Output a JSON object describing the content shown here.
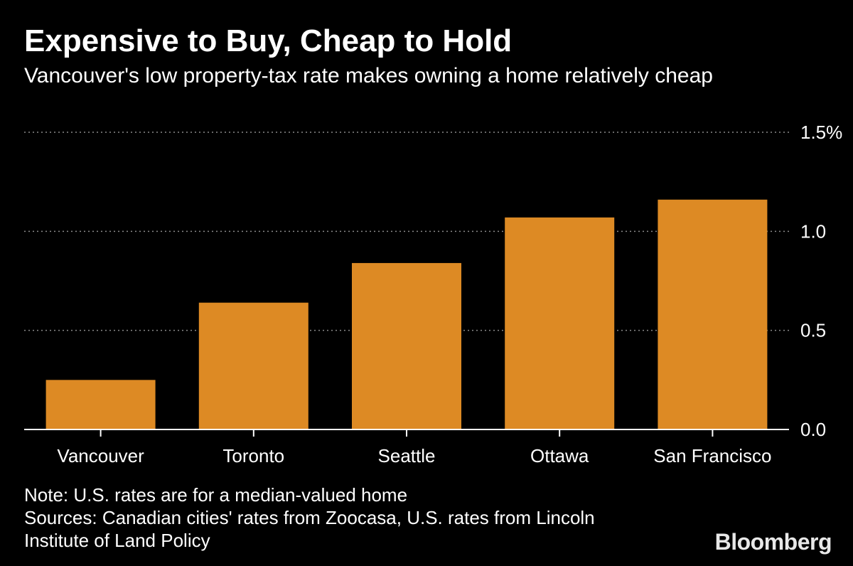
{
  "header": {
    "title": "Expensive to Buy, Cheap to Hold",
    "subtitle": "Vancouver's low property-tax rate makes owning a home relatively cheap"
  },
  "chart_data": {
    "type": "bar",
    "title": "Expensive to Buy, Cheap to Hold",
    "subtitle": "Vancouver's low property-tax rate makes owning a home relatively cheap",
    "categories": [
      "Vancouver",
      "Toronto",
      "Seattle",
      "Ottawa",
      "San Francisco"
    ],
    "values": [
      0.25,
      0.64,
      0.84,
      1.07,
      1.16
    ],
    "ylim": [
      0,
      1.5
    ],
    "yticks": [
      0.0,
      0.5,
      1.0,
      1.5
    ],
    "ytick_labels": [
      "0.0",
      "0.5",
      "1.0",
      "1.5%"
    ],
    "yaxis_side": "right",
    "grid": "dotted horizontal",
    "xlabel": "",
    "ylabel": "",
    "bar_color": "#dd8a24"
  },
  "footer": {
    "note": "Note: U.S. rates are for a median-valued home",
    "sources_line1": "Sources: Canadian cities' rates from Zoocasa, U.S. rates from Lincoln",
    "sources_line2": "Institute of Land Policy",
    "logo": "Bloomberg"
  },
  "colors": {
    "background": "#000000",
    "bar": "#dd8a24",
    "text": "#ffffff",
    "grid": "#8a8a8a",
    "axis": "#ffffff"
  }
}
